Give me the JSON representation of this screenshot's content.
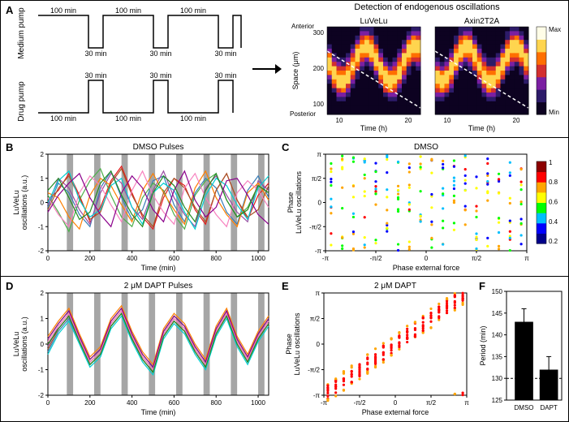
{
  "panelA": {
    "label": "A",
    "medium_pump_label": "Medium pump",
    "drug_pump_label": "Drug pump",
    "pulse_long": "100 min",
    "pulse_short": "30 min",
    "right_title": "Detection of endogenous oscillations",
    "heatmap_left_title": "LuVeLu",
    "heatmap_right_title": "Axin2T2A",
    "ylabel": "Space (μm)",
    "y_anterior": "Anterior",
    "y_posterior": "Posterior",
    "xlabel": "Time (h)",
    "yticks": [
      "300",
      "200",
      "100"
    ],
    "xticks": [
      "10",
      "20"
    ],
    "colorbar_max": "Max",
    "colorbar_min": "Min",
    "heatmap_colors": [
      "#0d0221",
      "#2d1b69",
      "#7b1fa2",
      "#d32f2f",
      "#ff6f00",
      "#ffd54f",
      "#fffde7"
    ]
  },
  "panelB": {
    "label": "B",
    "title": "DMSO Pulses",
    "ylabel": "LuVeLu\noscillations (a.u.)",
    "xlabel": "Time (min)",
    "ylim": [
      -2,
      2
    ],
    "yticks": [
      -2,
      -1,
      0,
      1,
      2
    ],
    "xlim": [
      0,
      1050
    ],
    "xticks": [
      0,
      200,
      400,
      600,
      800,
      1000
    ],
    "pulse_bars": [
      90,
      220,
      350,
      480,
      610,
      740,
      870,
      1000
    ],
    "pulse_width": 30,
    "bar_color": "#808080",
    "line_colors": [
      "#e41a1c",
      "#377eb8",
      "#4daf4a",
      "#984ea3",
      "#ff7f00",
      "#a65628",
      "#f781bf",
      "#00ced1",
      "#8b008b",
      "#228b22",
      "#b22222",
      "#4169e1",
      "#daa520"
    ],
    "series_x": [
      0,
      50,
      100,
      150,
      200,
      250,
      300,
      350,
      400,
      450,
      500,
      550,
      600,
      650,
      700,
      750,
      800,
      850,
      900,
      950,
      1000,
      1050
    ],
    "series": [
      [
        0.1,
        0.5,
        1.2,
        0.3,
        -0.8,
        -0.2,
        0.9,
        1.5,
        0.4,
        -0.6,
        -1.1,
        0.2,
        1.0,
        0.7,
        -0.3,
        -0.9,
        0.5,
        1.2,
        0.1,
        -0.7,
        0.3,
        0.8
      ],
      [
        -0.2,
        0.8,
        0.4,
        -0.5,
        -1.0,
        0.6,
        1.3,
        0.2,
        -0.7,
        -0.3,
        0.9,
        1.1,
        -0.1,
        -0.8,
        0.4,
        1.0,
        0.6,
        -0.4,
        -0.9,
        0.5,
        1.1,
        0.2
      ],
      [
        0.3,
        -0.4,
        -1.2,
        0.1,
        0.9,
        1.4,
        0.3,
        -0.6,
        -1.0,
        0.2,
        0.8,
        0.5,
        -0.5,
        -1.1,
        0.3,
        0.9,
        1.2,
        0.1,
        -0.6,
        -0.2,
        0.7,
        0.4
      ],
      [
        -0.1,
        1.0,
        0.6,
        -0.3,
        -0.9,
        0.4,
        1.2,
        0.8,
        -0.2,
        -0.7,
        0.5,
        1.3,
        0.2,
        -0.5,
        -1.0,
        0.6,
        1.1,
        0.3,
        -0.4,
        -0.8,
        0.9,
        0.5
      ],
      [
        0.4,
        0.2,
        -0.6,
        -1.1,
        0.3,
        1.0,
        0.7,
        -0.1,
        -0.8,
        0.5,
        1.2,
        0.4,
        -0.3,
        -0.9,
        0.6,
        1.3,
        0.2,
        -0.5,
        -1.0,
        0.4,
        0.8,
        0.1
      ],
      [
        -0.3,
        0.6,
        1.1,
        0.2,
        -0.7,
        -0.4,
        0.8,
        1.4,
        0.3,
        -0.5,
        -1.0,
        0.4,
        1.0,
        0.6,
        -0.2,
        -0.8,
        0.5,
        1.2,
        0.1,
        -0.6,
        -0.3,
        0.7
      ],
      [
        0.2,
        -0.5,
        -1.0,
        0.4,
        1.1,
        0.7,
        -0.1,
        -0.8,
        0.5,
        1.3,
        0.3,
        -0.4,
        -0.9,
        0.6,
        1.2,
        0.2,
        -0.5,
        -1.0,
        0.4,
        0.9,
        0.5,
        -0.2
      ],
      [
        0.0,
        0.9,
        1.3,
        0.1,
        -0.6,
        -0.3,
        0.7,
        1.0,
        -0.2,
        -0.9,
        0.4,
        0.8,
        0.5,
        -0.4,
        -1.1,
        0.3,
        1.0,
        0.7,
        -0.1,
        -0.7,
        0.6,
        1.1
      ],
      [
        -0.4,
        0.3,
        0.8,
        1.2,
        0.2,
        -0.5,
        -1.0,
        0.4,
        1.1,
        0.6,
        -0.3,
        -0.8,
        0.5,
        1.3,
        0.1,
        -0.6,
        -0.2,
        0.9,
        1.0,
        0.3,
        -0.5,
        -0.9
      ],
      [
        0.5,
        1.0,
        0.2,
        -0.7,
        -0.4,
        0.8,
        1.3,
        0.3,
        -0.5,
        -1.0,
        0.4,
        1.1,
        0.7,
        -0.2,
        -0.8,
        0.5,
        1.2,
        0.1,
        -0.6,
        -0.3,
        0.7,
        0.4
      ]
    ]
  },
  "panelC": {
    "label": "C",
    "title": "DMSO",
    "ylabel": "Phase\nLuVeLu oscillations",
    "xlabel": "Phase external force",
    "ylim": [
      -3.14,
      3.14
    ],
    "xlim": [
      -3.14,
      3.14
    ],
    "xticks_labels": [
      "-π",
      "-π/2",
      "0",
      "π/2",
      "π"
    ],
    "xticks_vals": [
      -3.14,
      -1.57,
      0,
      1.57,
      3.14
    ],
    "yticks_labels": [
      "-π",
      "-π/2",
      "0",
      "π/2",
      "π"
    ],
    "yticks_vals": [
      -3.14,
      -1.57,
      0,
      1.57,
      3.14
    ],
    "colorbar_ticks": [
      "1",
      "0.8",
      "0.6",
      "0.4",
      "0.2"
    ],
    "colormap": [
      "#00008b",
      "#0000ff",
      "#00bfff",
      "#00ff00",
      "#ffff00",
      "#ffa500",
      "#ff0000",
      "#8b0000"
    ]
  },
  "panelD": {
    "label": "D",
    "title": "2 μM DAPT Pulses",
    "ylabel": "LuVeLu\noscillations (a.u.)",
    "xlabel": "Time (min)",
    "ylim": [
      -2,
      2
    ],
    "yticks": [
      -2,
      -1,
      0,
      1,
      2
    ],
    "xlim": [
      0,
      1050
    ],
    "xticks": [
      0,
      200,
      400,
      600,
      800,
      1000
    ],
    "pulse_bars": [
      90,
      220,
      350,
      480,
      610,
      740,
      870,
      1000
    ],
    "pulse_width": 30,
    "bar_color": "#808080",
    "line_colors": [
      "#e41a1c",
      "#377eb8",
      "#4daf4a",
      "#984ea3",
      "#ff7f00",
      "#a65628",
      "#f781bf",
      "#00ced1",
      "#8b008b",
      "#228b22",
      "#b22222",
      "#4169e1",
      "#daa520"
    ],
    "series_x": [
      0,
      50,
      100,
      150,
      200,
      250,
      300,
      350,
      400,
      450,
      500,
      550,
      600,
      650,
      700,
      750,
      800,
      850,
      900,
      950,
      1000,
      1050
    ],
    "series": [
      [
        0.0,
        0.6,
        1.1,
        0.2,
        -0.7,
        -0.3,
        0.8,
        1.3,
        0.3,
        -0.5,
        -1.0,
        0.4,
        1.0,
        0.6,
        -0.2,
        -0.8,
        0.5,
        1.2,
        0.1,
        -0.6,
        0.3,
        0.9
      ],
      [
        -0.3,
        0.5,
        1.0,
        0.1,
        -0.8,
        -0.4,
        0.7,
        1.2,
        0.2,
        -0.6,
        -1.1,
        0.3,
        0.9,
        0.5,
        -0.3,
        -0.9,
        0.4,
        1.1,
        0.0,
        -0.7,
        0.2,
        0.8
      ],
      [
        0.2,
        0.8,
        1.3,
        0.3,
        -0.6,
        -0.2,
        0.9,
        1.4,
        0.4,
        -0.4,
        -0.9,
        0.5,
        1.1,
        0.7,
        -0.1,
        -0.7,
        0.6,
        1.3,
        0.2,
        -0.5,
        0.4,
        1.0
      ],
      [
        -0.1,
        0.7,
        1.2,
        0.2,
        -0.7,
        -0.3,
        0.8,
        1.3,
        0.3,
        -0.5,
        -1.0,
        0.4,
        1.0,
        0.6,
        -0.2,
        -0.8,
        0.5,
        1.2,
        0.1,
        -0.6,
        0.3,
        0.9
      ],
      [
        0.3,
        0.9,
        1.4,
        0.4,
        -0.5,
        -0.1,
        1.0,
        1.5,
        0.5,
        -0.3,
        -0.8,
        0.6,
        1.2,
        0.8,
        0.0,
        -0.6,
        0.7,
        1.4,
        0.3,
        -0.4,
        0.5,
        1.1
      ],
      [
        -0.2,
        0.6,
        1.1,
        0.1,
        -0.8,
        -0.4,
        0.7,
        1.2,
        0.2,
        -0.6,
        -1.1,
        0.3,
        0.9,
        0.5,
        -0.3,
        -0.9,
        0.4,
        1.1,
        0.0,
        -0.7,
        0.2,
        0.8
      ],
      [
        0.1,
        0.7,
        1.2,
        0.2,
        -0.7,
        -0.3,
        0.8,
        1.3,
        0.3,
        -0.5,
        -1.0,
        0.4,
        1.0,
        0.6,
        -0.2,
        -0.8,
        0.5,
        1.2,
        0.1,
        -0.6,
        0.3,
        0.9
      ],
      [
        -0.4,
        0.4,
        0.9,
        0.0,
        -0.9,
        -0.5,
        0.6,
        1.1,
        0.1,
        -0.7,
        -1.2,
        0.2,
        0.8,
        0.4,
        -0.4,
        -1.0,
        0.3,
        1.0,
        -0.1,
        -0.8,
        0.1,
        0.7
      ],
      [
        0.2,
        0.8,
        1.3,
        0.3,
        -0.6,
        -0.2,
        0.9,
        1.4,
        0.4,
        -0.4,
        -0.9,
        0.5,
        1.1,
        0.7,
        -0.1,
        -0.7,
        0.6,
        1.3,
        0.2,
        -0.5,
        0.4,
        1.0
      ],
      [
        0.0,
        0.6,
        1.1,
        0.1,
        -0.8,
        -0.4,
        0.7,
        1.2,
        0.2,
        -0.6,
        -1.1,
        0.3,
        0.9,
        0.5,
        -0.3,
        -0.9,
        0.4,
        1.1,
        0.0,
        -0.7,
        0.2,
        0.8
      ]
    ]
  },
  "panelE": {
    "label": "E",
    "title": "2 μM DAPT",
    "ylabel": "Phase\nLuVeLu oscillations",
    "xlabel": "Phase external force",
    "ylim": [
      -3.14,
      3.14
    ],
    "xlim": [
      -3.14,
      3.14
    ],
    "xticks_labels": [
      "-π",
      "-π/2",
      "0",
      "π/2",
      "π"
    ],
    "xticks_vals": [
      -3.14,
      -1.57,
      0,
      1.57,
      3.14
    ],
    "yticks_labels": [
      "-π",
      "-π/2",
      "0",
      "π/2",
      "π"
    ],
    "yticks_vals": [
      -3.14,
      -1.57,
      0,
      1.57,
      3.14
    ]
  },
  "panelF": {
    "label": "F",
    "ylabel": "Period (min)",
    "categories": [
      "DMSO",
      "DAPT"
    ],
    "values": [
      143,
      132
    ],
    "errors": [
      3,
      3
    ],
    "ylim": [
      125,
      150
    ],
    "yticks": [
      125,
      130,
      135,
      140,
      145,
      150
    ],
    "dashed_line": 130,
    "bar_color": "#000000"
  }
}
